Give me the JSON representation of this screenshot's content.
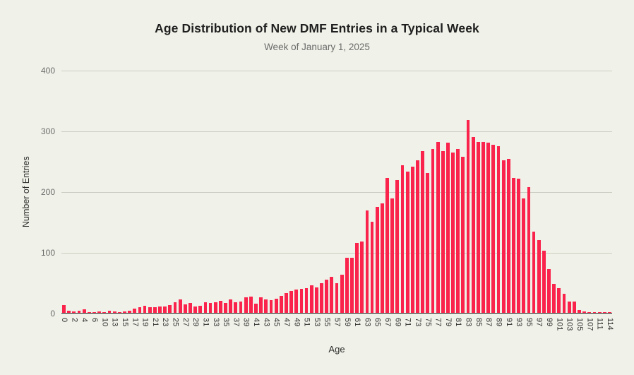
{
  "page": {
    "background": "#f0f1e8"
  },
  "chart_data": {
    "type": "bar",
    "title": "Age Distribution of New DMF Entries in a Typical Week",
    "subtitle": "Week of January 1, 2025",
    "xlabel": "Age",
    "ylabel": "Number of Entries",
    "ylim": [
      0,
      400
    ],
    "yticks": [
      0,
      100,
      200,
      300,
      400
    ],
    "grid": true,
    "legend": "none",
    "bar_color": "#fa234c",
    "tick_label_every": 2,
    "categories": [
      0,
      1,
      2,
      3,
      4,
      5,
      6,
      8,
      10,
      11,
      13,
      14,
      15,
      16,
      17,
      18,
      19,
      20,
      21,
      22,
      23,
      24,
      25,
      26,
      27,
      28,
      29,
      30,
      31,
      32,
      33,
      34,
      35,
      36,
      37,
      38,
      39,
      40,
      41,
      42,
      43,
      44,
      45,
      46,
      47,
      48,
      49,
      50,
      51,
      52,
      53,
      54,
      55,
      56,
      57,
      58,
      59,
      60,
      61,
      62,
      63,
      64,
      65,
      66,
      67,
      68,
      69,
      70,
      71,
      72,
      73,
      74,
      75,
      76,
      77,
      78,
      79,
      80,
      81,
      82,
      83,
      84,
      85,
      86,
      87,
      88,
      89,
      90,
      91,
      92,
      93,
      94,
      95,
      96,
      97,
      98,
      99,
      100,
      101,
      102,
      103,
      104,
      105,
      106,
      107,
      109,
      111,
      112,
      114
    ],
    "values": [
      13,
      4,
      2,
      3,
      6,
      1,
      1,
      2,
      1,
      3,
      2,
      1,
      2,
      3,
      7,
      9,
      12,
      9,
      9,
      11,
      11,
      13,
      17,
      22,
      14,
      16,
      11,
      12,
      17,
      16,
      18,
      20,
      16,
      22,
      17,
      19,
      26,
      27,
      15,
      26,
      22,
      21,
      23,
      28,
      32,
      36,
      38,
      39,
      41,
      45,
      42,
      49,
      55,
      59,
      49,
      63,
      91,
      91,
      115,
      118,
      169,
      150,
      174,
      180,
      222,
      188,
      219,
      243,
      233,
      241,
      251,
      266,
      230,
      270,
      281,
      266,
      280,
      264,
      270,
      257,
      317,
      290,
      281,
      281,
      280,
      277,
      275,
      251,
      254,
      222,
      221,
      188,
      207,
      134,
      120,
      102,
      72,
      48,
      41,
      31,
      19,
      19,
      5,
      2,
      1,
      1,
      1,
      1,
      1
    ]
  }
}
